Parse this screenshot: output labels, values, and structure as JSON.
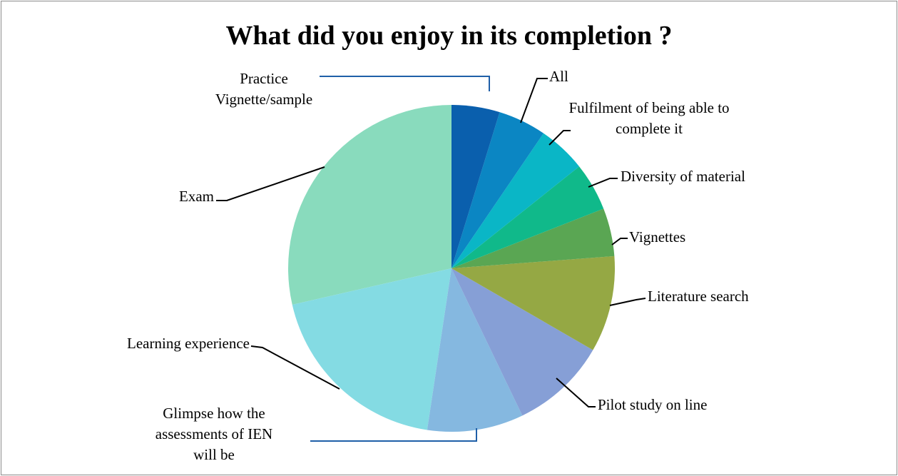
{
  "chart_data": {
    "type": "pie",
    "title": "What did you enjoy in its completion ?",
    "categories": [
      "Practice Vignette/sample",
      "All",
      "Fulfilment of being able to complete it",
      "Diversity of material",
      "Vignettes",
      "Literature search",
      "Pilot study on line",
      "Glimpse how the assessments of IEN will be",
      "Learning experience",
      "Exam"
    ],
    "values": [
      1,
      1,
      1,
      1,
      1,
      2,
      2,
      2,
      4,
      6
    ],
    "colors": [
      "#0a5fad",
      "#0b86c3",
      "#0ab6c6",
      "#10b98a",
      "#5aa653",
      "#95a844",
      "#869fd6",
      "#85b8e0",
      "#84dbe3",
      "#89dbbd"
    ]
  }
}
